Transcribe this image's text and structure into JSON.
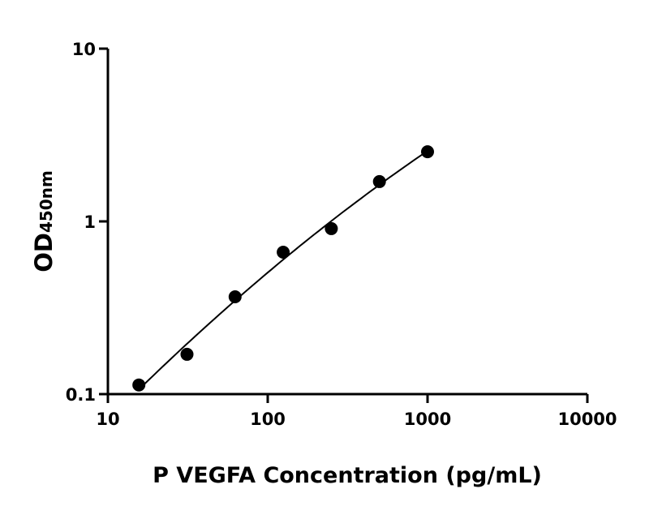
{
  "chart_data": {
    "type": "scatter",
    "title": "",
    "xlabel": "P VEGFA Concentration (pg/mL)",
    "ylabel": {
      "main": "OD",
      "subscript": "450nm"
    },
    "x_scale": "log",
    "y_scale": "log",
    "xlim": [
      10,
      10000
    ],
    "ylim": [
      0.1,
      10
    ],
    "x_ticks": [
      "10",
      "100",
      "1000",
      "10000"
    ],
    "y_ticks": [
      "0.1",
      "1",
      "10"
    ],
    "grid": false,
    "legend": "none",
    "marker_color": "#000000",
    "fit_curve": true,
    "series": [
      {
        "x": [
          15.625,
          31.25,
          62.5,
          125,
          250,
          500,
          1000
        ],
        "y": [
          0.113,
          0.17,
          0.366,
          0.663,
          0.908,
          1.7,
          2.53
        ]
      }
    ]
  }
}
